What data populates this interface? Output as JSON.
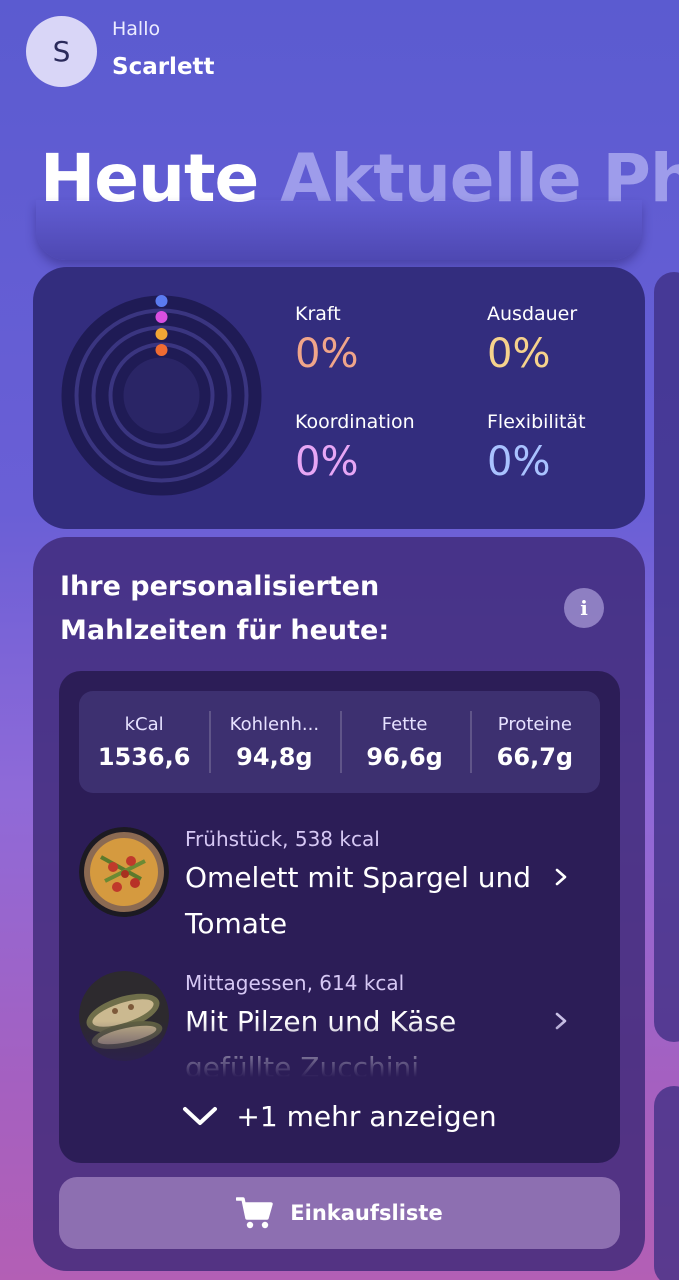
{
  "header": {
    "avatar_initial": "S",
    "greeting": "Hallo",
    "username": "Scarlett",
    "tabs": [
      {
        "label": "Heute",
        "active": true
      },
      {
        "label": "Aktuelle Pho",
        "active": false
      }
    ]
  },
  "stats": {
    "items": [
      {
        "label": "Kraft",
        "value": "0%",
        "color": "#f0a58a"
      },
      {
        "label": "Ausdauer",
        "value": "0%",
        "color": "#f6d28c"
      },
      {
        "label": "Koordination",
        "value": "0%",
        "color": "#e7a6f5"
      },
      {
        "label": "Flexibilität",
        "value": "0%",
        "color": "#a9c2ff"
      }
    ],
    "ring_dot_colors": [
      "#5b7bf0",
      "#d94fe0",
      "#f0a634",
      "#f06b32"
    ]
  },
  "meals": {
    "title": "Ihre personalisierten Mahlzeiten für heute:",
    "info_icon": "i",
    "macros": [
      {
        "label": "kCal",
        "value": "1536,6"
      },
      {
        "label": "Kohlenh...",
        "value": "94,8g"
      },
      {
        "label": "Fette",
        "value": "96,6g"
      },
      {
        "label": "Proteine",
        "value": "66,7g"
      }
    ],
    "items": [
      {
        "subtitle": "Frühstück, 538 kcal",
        "name": "Omelett mit Spargel und Tomate"
      },
      {
        "subtitle": "Mittagessen, 614 kcal",
        "name": "Mit Pilzen und Käse gefüllte Zucchini"
      }
    ],
    "show_more": "+1 mehr anzeigen",
    "shopping_list": "Einkaufsliste"
  }
}
